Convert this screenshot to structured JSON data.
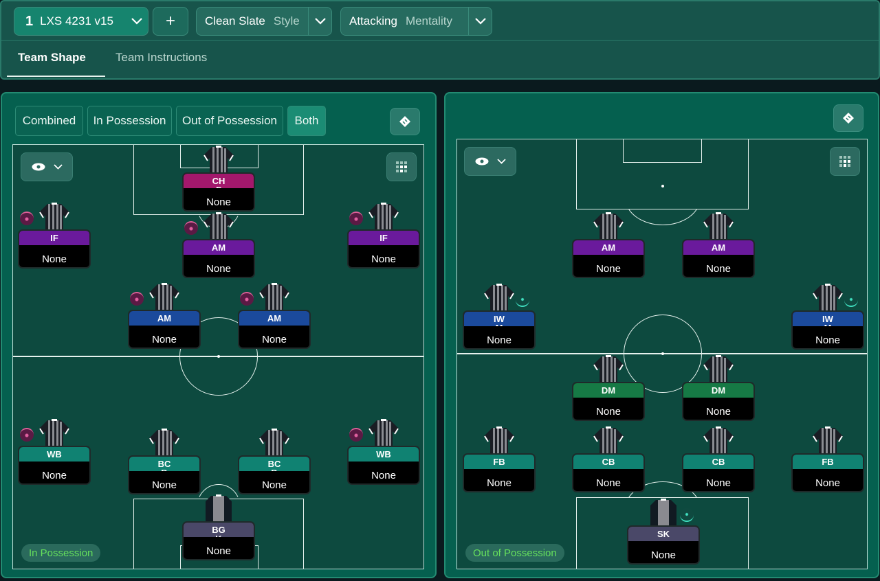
{
  "header": {
    "tactic_number": "1",
    "tactic_name": "LXS 4231 v15",
    "add_label": "+",
    "style_value": "Clean Slate",
    "style_label": "Style",
    "mentality_value": "Attacking",
    "mentality_label": "Mentality"
  },
  "tabs": [
    {
      "label": "Team Shape",
      "active": true
    },
    {
      "label": "Team Instructions",
      "active": false
    }
  ],
  "view_modes": [
    {
      "label": "Combined",
      "active": false
    },
    {
      "label": "In Possession",
      "active": false
    },
    {
      "label": "Out of Possession",
      "active": false
    },
    {
      "label": "Both",
      "active": true
    }
  ],
  "colors": {
    "striker": "#a3186c",
    "attacking_mid": "#6a1a9c",
    "wide_mid": "#1b4a9c",
    "defender": "#108272",
    "defensive_mid": "#167a45",
    "goalkeeper": "#4a4868",
    "in_possession_badge_text": "#66e05c"
  },
  "in_possession": {
    "badge": "In Possession",
    "players": [
      {
        "role": "CHF",
        "player": "None",
        "color": "#a3186c",
        "marker": false
      },
      {
        "role": "IF",
        "player": "None",
        "color": "#6a1a9c",
        "marker": "pink"
      },
      {
        "role": "AM",
        "player": "None",
        "color": "#6a1a9c",
        "marker": "pink"
      },
      {
        "role": "IF",
        "player": "None",
        "color": "#6a1a9c",
        "marker": "pink"
      },
      {
        "role": "AM",
        "player": "None",
        "color": "#1b4a9c",
        "marker": "pink"
      },
      {
        "role": "AM",
        "player": "None",
        "color": "#1b4a9c",
        "marker": "pink"
      },
      {
        "role": "WB",
        "player": "None",
        "color": "#108272",
        "marker": "pink"
      },
      {
        "role": "BCB",
        "player": "None",
        "color": "#108272",
        "marker": false
      },
      {
        "role": "BCB",
        "player": "None",
        "color": "#108272",
        "marker": false
      },
      {
        "role": "WB",
        "player": "None",
        "color": "#108272",
        "marker": "pink"
      },
      {
        "role": "BGK",
        "player": "None",
        "color": "#4a4868",
        "marker": false,
        "gk": true
      }
    ]
  },
  "out_of_possession": {
    "badge": "Out of Possession",
    "players": [
      {
        "role": "AM",
        "player": "None",
        "color": "#6a1a9c",
        "marker": false
      },
      {
        "role": "AM",
        "player": "None",
        "color": "#6a1a9c",
        "marker": false
      },
      {
        "role": "IWM",
        "player": "None",
        "color": "#1b4a9c",
        "marker": "teal"
      },
      {
        "role": "IWM",
        "player": "None",
        "color": "#1b4a9c",
        "marker": "teal"
      },
      {
        "role": "DM",
        "player": "None",
        "color": "#167a45",
        "marker": false
      },
      {
        "role": "DM",
        "player": "None",
        "color": "#167a45",
        "marker": false
      },
      {
        "role": "FB",
        "player": "None",
        "color": "#108272",
        "marker": false
      },
      {
        "role": "CB",
        "player": "None",
        "color": "#108272",
        "marker": false
      },
      {
        "role": "CB",
        "player": "None",
        "color": "#108272",
        "marker": false
      },
      {
        "role": "FB",
        "player": "None",
        "color": "#108272",
        "marker": false
      },
      {
        "role": "SK",
        "player": "None",
        "color": "#4a4868",
        "marker": "teal",
        "gk": true
      }
    ]
  }
}
